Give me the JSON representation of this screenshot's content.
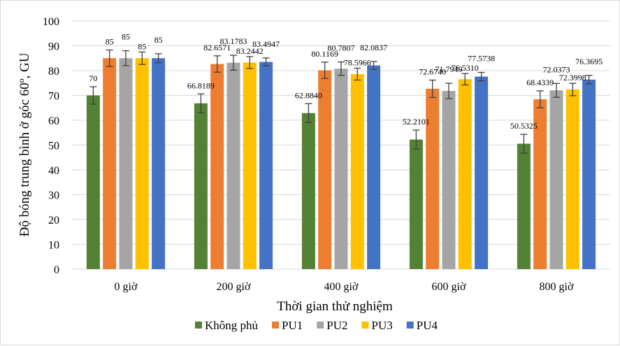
{
  "chart_data": {
    "type": "bar",
    "title": "",
    "xlabel": "Thời gian thử nghiệm",
    "ylabel": "Độ bóng trung bình ở góc 60º, GU",
    "ylim": [
      0,
      100
    ],
    "yticks": [
      0,
      10,
      20,
      30,
      40,
      50,
      60,
      70,
      80,
      90,
      100
    ],
    "grid": true,
    "legend": "bottom",
    "categories": [
      "0 giờ",
      "200 giờ",
      "400 giờ",
      "600 giờ",
      "800 giờ"
    ],
    "series": [
      {
        "name": "Không phủ",
        "color": "#548235",
        "values": [
          70,
          66.8189,
          62.884,
          52.2101,
          50.5325
        ],
        "labels": [
          "70",
          "66.8189",
          "62.8840",
          "52.2101",
          "50.5325"
        ],
        "errors": [
          3.5,
          3.8,
          3.8,
          3.8,
          3.8
        ]
      },
      {
        "name": "PU1",
        "color": "#ED7D31",
        "values": [
          85,
          82.6571,
          80.1169,
          72.674,
          68.4339
        ],
        "labels": [
          "85",
          "82.6571",
          "80.1169",
          "72.6740",
          "68.4339"
        ],
        "errors": [
          3.3,
          3.3,
          3.3,
          3.5,
          3.4
        ]
      },
      {
        "name": "PU2",
        "color": "#A5A5A5",
        "values": [
          85,
          83.1783,
          80.7807,
          71.7949,
          72.0373
        ],
        "labels": [
          "85",
          "83.1783",
          "80.7807",
          "71.7949",
          "72.0373"
        ],
        "errors": [
          3.0,
          3.0,
          2.7,
          3.1,
          2.8
        ]
      },
      {
        "name": "PU3",
        "color": "#FFC000",
        "values": [
          85,
          83.2442,
          78.5966,
          76.531,
          72.3998
        ],
        "labels": [
          "85",
          "83.2442",
          "78.5966",
          "76.5310",
          "72.3998"
        ],
        "errors": [
          2.5,
          2.4,
          2.4,
          2.3,
          2.5
        ]
      },
      {
        "name": "PU4",
        "color": "#4472C4",
        "values": [
          85,
          83.4947,
          82.0837,
          77.5738,
          76.3695
        ],
        "labels": [
          "85",
          "83.4947",
          "82.0837",
          "77.5738",
          "76.3695"
        ],
        "errors": [
          1.8,
          1.6,
          1.6,
          1.7,
          1.7
        ]
      }
    ]
  }
}
